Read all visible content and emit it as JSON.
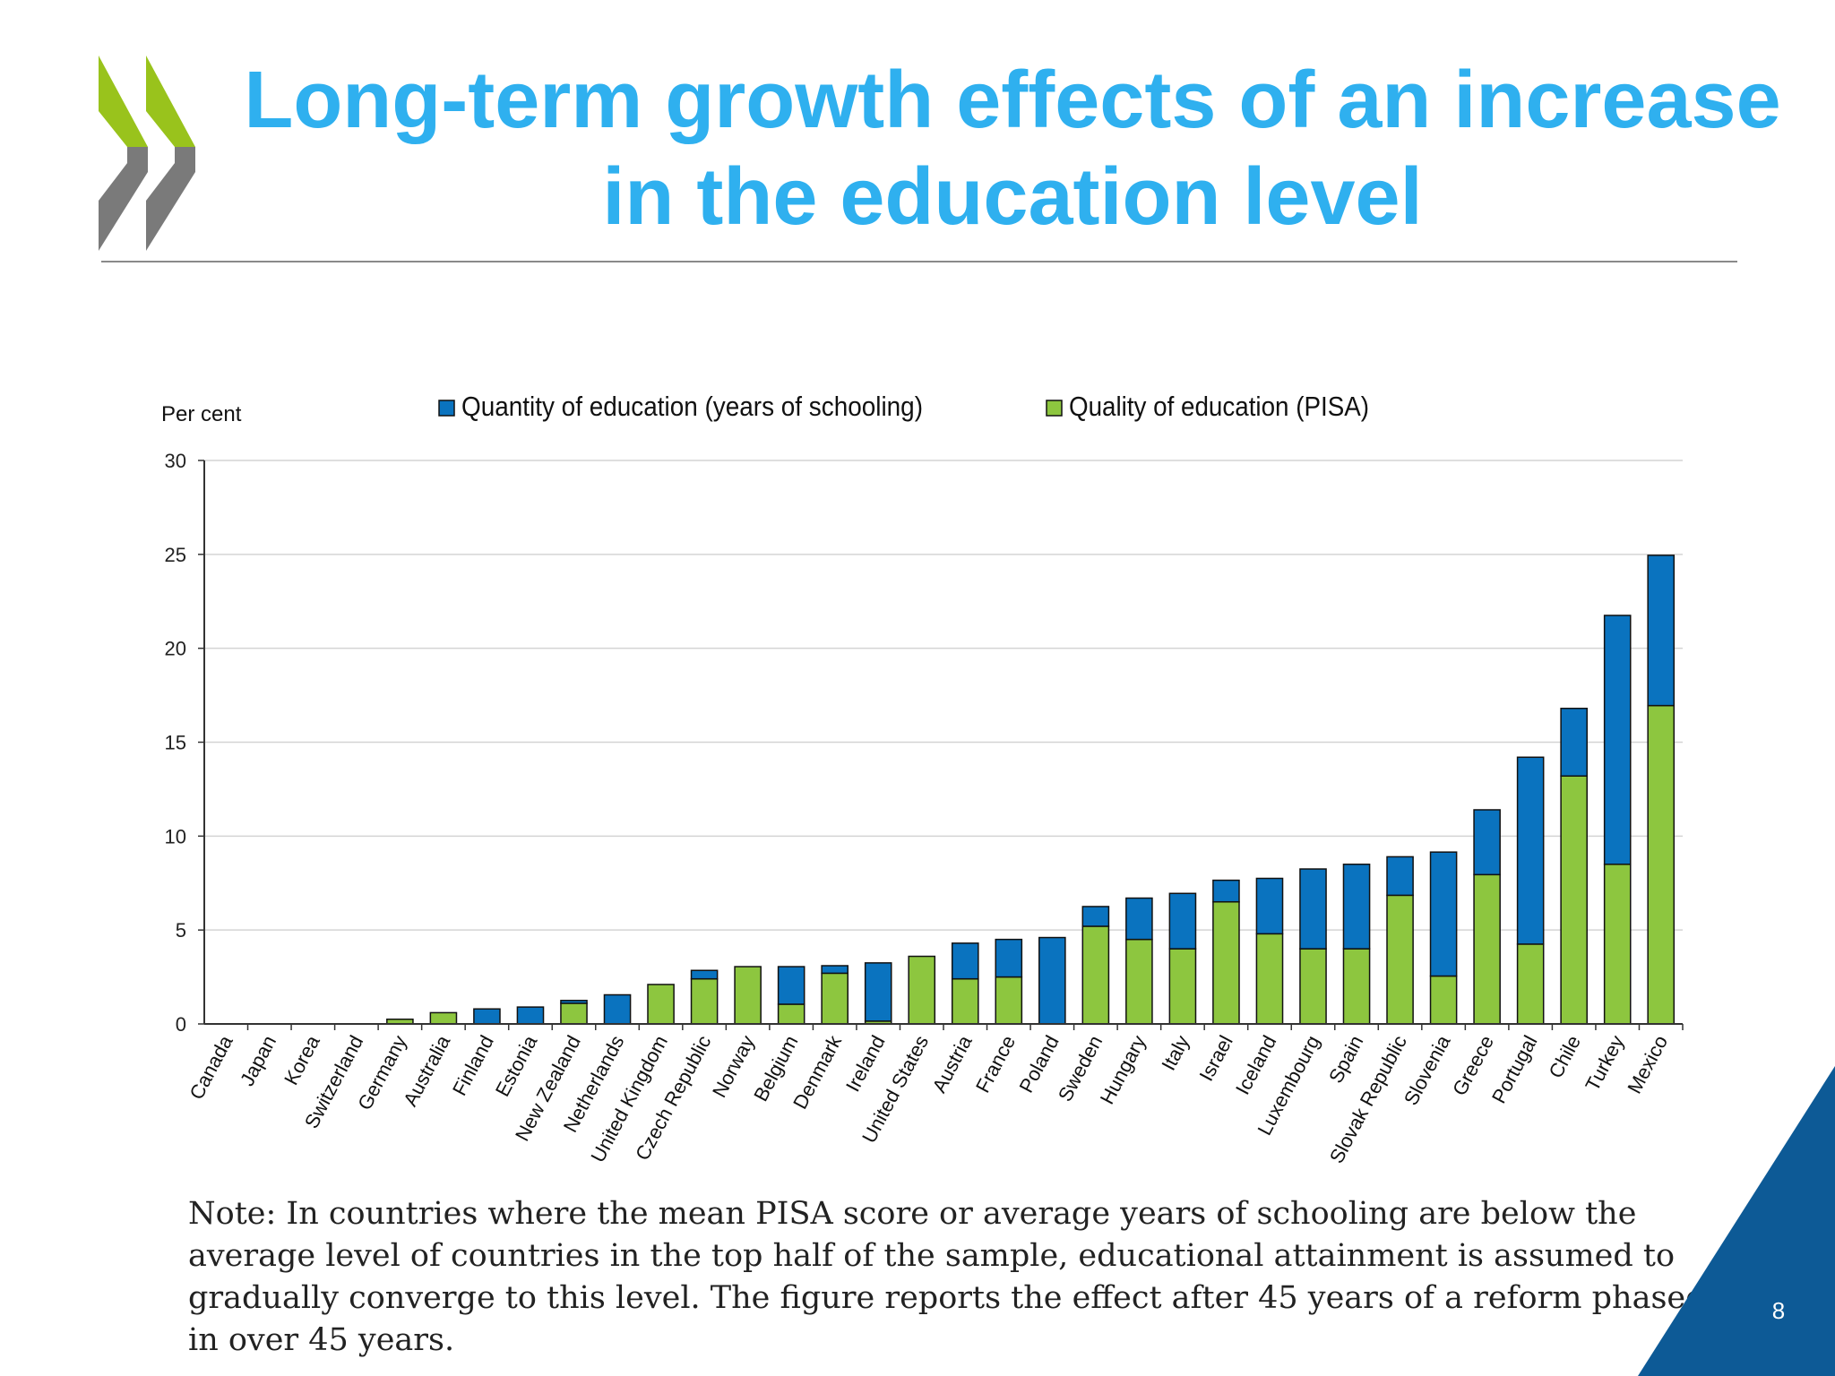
{
  "slide": {
    "title": "Long-term growth effects of an increase in the education level",
    "note": "Note: In countries where the mean PISA score or average years of schooling are below the average level of countries in the top half of the sample, educational attainment is assumed to gradually converge to this level. The figure reports the effect after 45 years of a reform phased in over 45 years.",
    "page_number": "8"
  },
  "colors": {
    "title": "#2fb0ef",
    "quantity": "#0a73bf",
    "quality": "#8dc63f",
    "logo_green": "#99c31c",
    "logo_gray": "#7a7a7a",
    "corner": "#0d5a96"
  },
  "icons": {
    "logo": "oecd-chevron-logo"
  },
  "chart_data": {
    "type": "bar",
    "stacked": true,
    "ylabel": "Per cent",
    "ylim": [
      0,
      30
    ],
    "yticks": [
      0,
      5,
      10,
      15,
      20,
      25,
      30
    ],
    "grid": true,
    "legend_position": "top",
    "categories": [
      "Canada",
      "Japan",
      "Korea",
      "Switzerland",
      "Germany",
      "Australia",
      "Finland",
      "Estonia",
      "New Zealand",
      "Netherlands",
      "United Kingdom",
      "Czech Republic",
      "Norway",
      "Belgium",
      "Denmark",
      "Ireland",
      "United States",
      "Austria",
      "France",
      "Poland",
      "Sweden",
      "Hungary",
      "Italy",
      "Israel",
      "Iceland",
      "Luxembourg",
      "Spain",
      "Slovak Republic",
      "Slovenia",
      "Greece",
      "Portugal",
      "Chile",
      "Turkey",
      "Mexico"
    ],
    "series": [
      {
        "name": "Quality of education (PISA)",
        "color": "#8dc63f",
        "values": [
          0,
          0,
          0,
          0,
          0.25,
          0.6,
          0,
          0,
          1.1,
          0,
          2.1,
          2.4,
          3.05,
          1.05,
          2.7,
          0.15,
          3.6,
          2.4,
          2.5,
          0,
          5.2,
          4.5,
          4.0,
          6.5,
          4.8,
          4.0,
          4.0,
          6.85,
          2.55,
          7.95,
          4.25,
          13.2,
          8.5,
          16.95
        ]
      },
      {
        "name": "Quantity of education (years of schooling)",
        "color": "#0a73bf",
        "values": [
          0,
          0,
          0,
          0,
          0,
          0,
          0.8,
          0.9,
          0.15,
          1.55,
          0,
          0.45,
          0,
          2.0,
          0.4,
          3.1,
          0,
          1.9,
          2.0,
          4.6,
          1.05,
          2.2,
          2.95,
          1.15,
          2.95,
          4.25,
          4.5,
          2.05,
          6.6,
          3.45,
          9.95,
          3.6,
          13.25,
          8.0
        ]
      }
    ]
  }
}
